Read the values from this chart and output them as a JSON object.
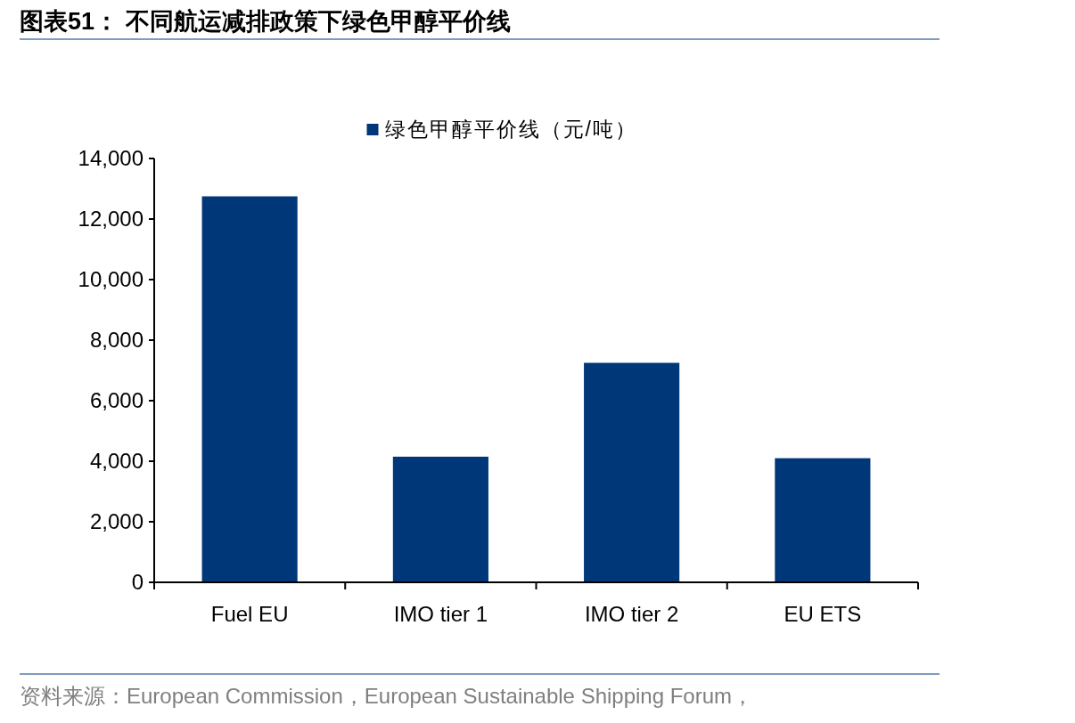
{
  "chart_data": {
    "type": "bar",
    "title": "图表51：  不同航运减排政策下绿色甲醇平价线",
    "categories": [
      "Fuel EU",
      "IMO tier 1",
      "IMO tier 2",
      "EU ETS"
    ],
    "series": [
      {
        "name": "绿色甲醇平价线（元/吨）",
        "color": "#003778",
        "values": [
          12750,
          4150,
          7250,
          4100
        ]
      }
    ],
    "ylim": [
      0,
      14000
    ],
    "yticks": [
      {
        "value": 0,
        "label": "0"
      },
      {
        "value": 2000,
        "label": "2,000"
      },
      {
        "value": 4000,
        "label": "4,000"
      },
      {
        "value": 6000,
        "label": "6,000"
      },
      {
        "value": 8000,
        "label": "8,000"
      },
      {
        "value": 10000,
        "label": "10,000"
      },
      {
        "value": 12000,
        "label": "12,000"
      },
      {
        "value": 14000,
        "label": "14,000"
      }
    ],
    "legend": "top",
    "annotations": [
      "资料来源：European Commission，European Sustainable Shipping Forum，"
    ]
  }
}
